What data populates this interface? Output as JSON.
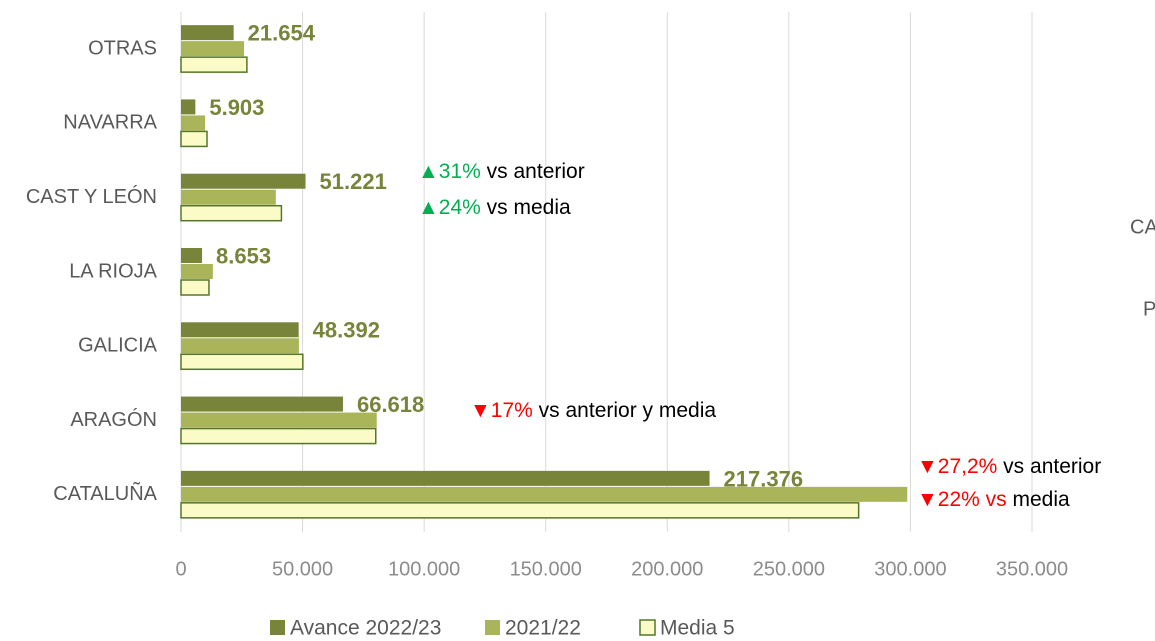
{
  "chart_data": {
    "type": "barh",
    "categories": [
      "OTRAS",
      "NAVARRA",
      "CAST Y LEÓN",
      "LA RIOJA",
      "GALICIA",
      "ARAGÓN",
      "CATALUÑA"
    ],
    "series": [
      {
        "name": "Avance 2022/23",
        "color": "#77843a",
        "values": [
          21654,
          5903,
          51221,
          8653,
          48392,
          66618,
          217376
        ],
        "value_labels": [
          "21.654",
          "5.903",
          "51.221",
          "8.653",
          "48.392",
          "66.618",
          "217.376"
        ]
      },
      {
        "name": "2021/22",
        "color": "#a9b558",
        "values": [
          25900,
          9900,
          39000,
          13100,
          48500,
          80500,
          298700
        ]
      },
      {
        "name": "Media 5",
        "color": "#fbfbc8",
        "values": [
          27100,
          10700,
          41300,
          11500,
          50100,
          80100,
          278700
        ]
      }
    ],
    "xlim": [
      0,
      350000
    ],
    "xticks": [
      0,
      {
        "value": 50000,
        "label": "50.000"
      },
      {
        "value": 100000,
        "label": "100.000"
      },
      {
        "value": 150000,
        "label": "150.000"
      },
      {
        "value": 200000,
        "label": "200.000"
      },
      {
        "value": 250000,
        "label": "250.000"
      },
      {
        "value": 300000,
        "label": "300.000"
      },
      {
        "value": 350000,
        "label": "350.000"
      }
    ],
    "grid": true,
    "legend": "bottom",
    "annotations": [
      [
        {
          "text": "▲31%",
          "color": "#00b050"
        },
        {
          "text": " vs anterior",
          "color": "#000000"
        }
      ],
      [
        {
          "text": "▲24%",
          "color": "#00b050"
        },
        {
          "text": " vs media",
          "color": "#000000"
        }
      ],
      [
        {
          "text": "▼17%",
          "color": "#ff0000"
        },
        {
          "text": " vs anterior y media",
          "color": "#000000"
        }
      ],
      [
        {
          "text": "▼27,2%",
          "color": "#ff0000"
        },
        {
          "text": " vs anterior",
          "color": "#000000"
        }
      ],
      [
        {
          "text": "▼22% vs",
          "color": "#ff0000"
        },
        {
          "text": " media",
          "color": "#000000"
        }
      ]
    ],
    "clipped_texts": [
      "CA",
      "P"
    ]
  }
}
